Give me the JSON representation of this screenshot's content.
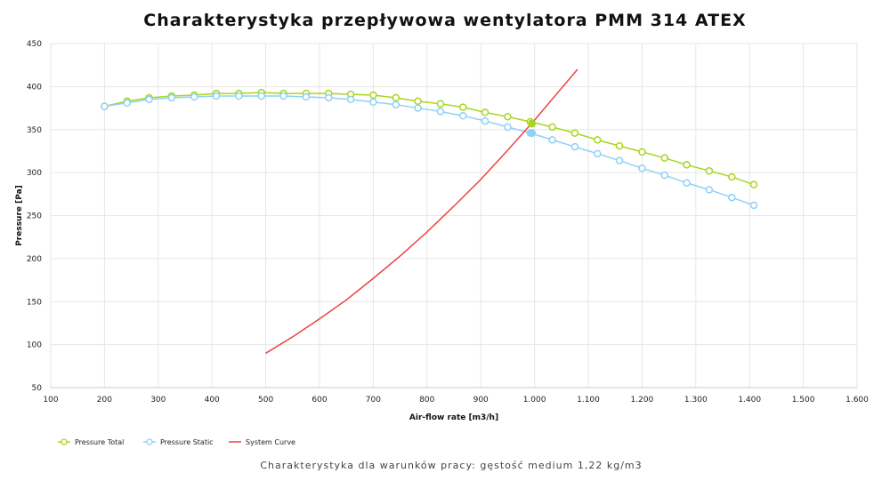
{
  "chart_data": {
    "type": "line",
    "title": "Charakterystyka przepływowa wentylatora PMM 314 ATEX",
    "subtitle": "Charakterystyka dla warunków pracy: gęstość medium 1,22 kg/m3",
    "xlabel": "Air-flow rate [m3/h]",
    "ylabel": "Pressure [Pa]",
    "xlim": [
      100,
      1600
    ],
    "ylim": [
      50,
      450
    ],
    "xticks": [
      "100",
      "200",
      "300",
      "400",
      "500",
      "600",
      "700",
      "800",
      "900",
      "1.000",
      "1.100",
      "1.200",
      "1.300",
      "1.400",
      "1.500",
      "1.600"
    ],
    "yticks": [
      "50",
      "100",
      "150",
      "200",
      "250",
      "300",
      "350",
      "400",
      "450"
    ],
    "grid": true,
    "legend": "bottom-left",
    "series": [
      {
        "name": "Pressure Total",
        "color": "#a8d61f",
        "markers": true,
        "x": [
          200,
          242,
          283,
          325,
          367,
          408,
          450,
          492,
          533,
          575,
          617,
          658,
          700,
          742,
          783,
          825,
          867,
          908,
          950,
          992,
          1033,
          1075,
          1117,
          1158,
          1200,
          1242,
          1283,
          1325,
          1367,
          1408
        ],
        "y": [
          377,
          383,
          387,
          389,
          390,
          392,
          392,
          393,
          392,
          392,
          392,
          391,
          390,
          387,
          383,
          380,
          376,
          370,
          365,
          359,
          353,
          346,
          338,
          331,
          324,
          317,
          309,
          302,
          295,
          286
        ]
      },
      {
        "name": "Pressure Static",
        "color": "#8fd1f5",
        "markers": true,
        "x": [
          200,
          242,
          283,
          325,
          367,
          408,
          450,
          492,
          533,
          575,
          617,
          658,
          700,
          742,
          783,
          825,
          867,
          908,
          950,
          992,
          1033,
          1075,
          1117,
          1158,
          1200,
          1242,
          1283,
          1325,
          1367,
          1408
        ],
        "y": [
          377,
          381,
          385,
          387,
          388,
          389,
          389,
          389,
          389,
          388,
          387,
          385,
          382,
          379,
          375,
          371,
          366,
          360,
          353,
          346,
          338,
          330,
          322,
          314,
          305,
          297,
          288,
          280,
          271,
          262
        ]
      },
      {
        "name": "System Curve",
        "color": "#f04040",
        "markers": false,
        "x": [
          500,
          550,
          600,
          650,
          700,
          750,
          800,
          850,
          900,
          950,
          1000,
          1050,
          1080
        ],
        "y": [
          90,
          109,
          130,
          152,
          177,
          203,
          231,
          261,
          292,
          326,
          361,
          398,
          420
        ]
      }
    ],
    "operating_point": {
      "x": 995,
      "total": 357,
      "static": 346
    }
  }
}
